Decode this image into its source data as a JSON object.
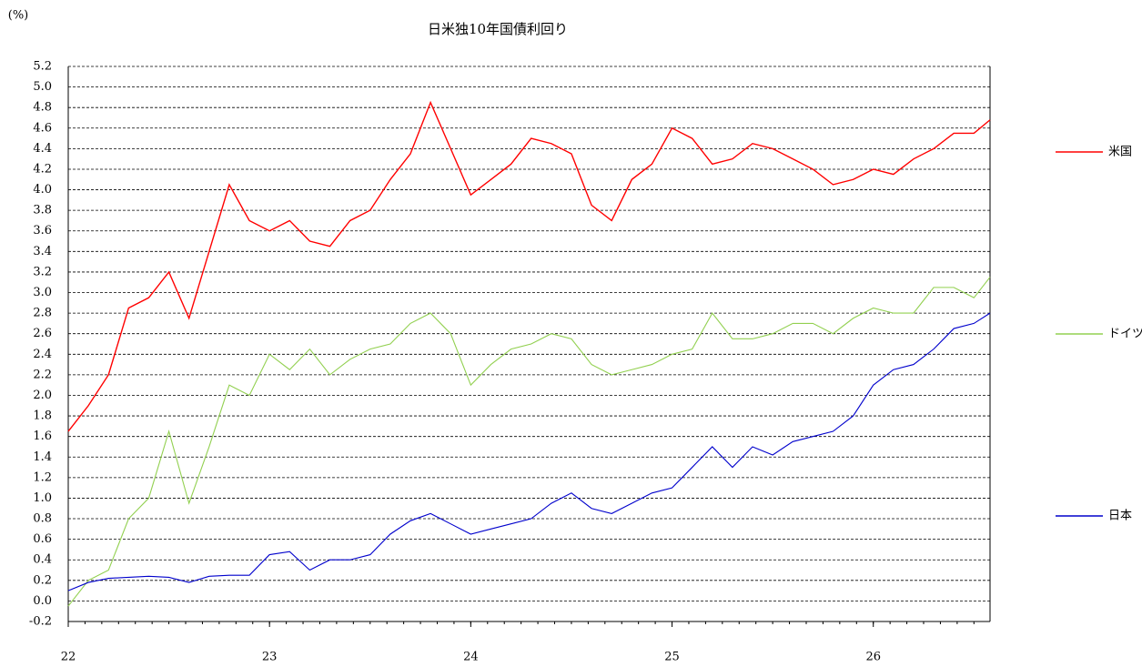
{
  "chart_data": {
    "type": "line",
    "title": "日米独10年国債利回り",
    "y_label": "(%)",
    "x": [
      22.0,
      22.1,
      22.2,
      22.3,
      22.4,
      22.5,
      22.6,
      22.7,
      22.8,
      22.9,
      23.0,
      23.1,
      23.2,
      23.3,
      23.4,
      23.5,
      23.6,
      23.7,
      23.8,
      23.9,
      24.0,
      24.1,
      24.2,
      24.3,
      24.4,
      24.5,
      24.6,
      24.7,
      24.8,
      24.9,
      25.0,
      25.1,
      25.2,
      25.3,
      25.4,
      25.5,
      25.6,
      25.7,
      25.8,
      25.9,
      26.0,
      26.1,
      26.2,
      26.3,
      26.4,
      26.5,
      26.58
    ],
    "series": [
      {
        "name": "米国",
        "color": "#ff0000",
        "values": [
          1.65,
          1.9,
          2.2,
          2.85,
          2.95,
          3.2,
          2.75,
          3.4,
          4.05,
          3.7,
          3.6,
          3.7,
          3.5,
          3.45,
          3.7,
          3.8,
          4.1,
          4.35,
          4.85,
          4.4,
          3.95,
          4.1,
          4.25,
          4.5,
          4.45,
          4.35,
          3.85,
          3.7,
          4.1,
          4.25,
          4.6,
          4.5,
          4.25,
          4.3,
          4.45,
          4.4,
          4.3,
          4.2,
          4.05,
          4.1,
          4.2,
          4.15,
          4.3,
          4.4,
          4.55,
          4.55,
          4.68
        ]
      },
      {
        "name": "ドイツ",
        "color": "#92d050",
        "values": [
          -0.05,
          0.2,
          0.3,
          0.8,
          1.0,
          1.65,
          0.95,
          1.5,
          2.1,
          2.0,
          2.4,
          2.25,
          2.45,
          2.2,
          2.35,
          2.45,
          2.5,
          2.7,
          2.8,
          2.6,
          2.1,
          2.3,
          2.45,
          2.5,
          2.6,
          2.55,
          2.3,
          2.2,
          2.25,
          2.3,
          2.4,
          2.45,
          2.8,
          2.55,
          2.55,
          2.6,
          2.7,
          2.7,
          2.6,
          2.75,
          2.85,
          2.8,
          2.8,
          3.05,
          3.05,
          2.95,
          3.15
        ]
      },
      {
        "name": "日本",
        "color": "#0000cc",
        "values": [
          0.1,
          0.18,
          0.22,
          0.23,
          0.24,
          0.23,
          0.18,
          0.24,
          0.25,
          0.25,
          0.45,
          0.48,
          0.3,
          0.4,
          0.4,
          0.45,
          0.65,
          0.78,
          0.85,
          0.75,
          0.65,
          0.7,
          0.75,
          0.8,
          0.95,
          1.05,
          0.9,
          0.85,
          0.95,
          1.05,
          1.1,
          1.3,
          1.5,
          1.3,
          1.5,
          1.42,
          1.55,
          1.6,
          1.65,
          1.8,
          2.1,
          2.25,
          2.3,
          2.45,
          2.65,
          2.7,
          2.8
        ]
      }
    ],
    "xlim": [
      22,
      26.58
    ],
    "xticks": [
      22,
      23,
      24,
      25,
      26
    ],
    "ylim": [
      -0.2,
      5.2
    ],
    "yticks": [
      -0.2,
      {
        "value": 0,
        "label": "0.0"
      },
      0.2,
      0.4,
      0.6,
      0.8,
      {
        "value": 1,
        "label": "1.0"
      },
      1.2,
      1.4,
      1.6,
      1.8,
      {
        "value": 2,
        "label": "2.0"
      },
      2.2,
      2.4,
      2.6,
      2.8,
      {
        "value": 3,
        "label": "3.0"
      },
      3.2,
      3.4,
      3.6,
      3.8,
      {
        "value": 4,
        "label": "4.0"
      },
      4.2,
      4.4,
      4.6,
      4.8,
      {
        "value": 5,
        "label": "5.0"
      },
      5.2
    ],
    "grid": true,
    "legend_position": "right"
  }
}
